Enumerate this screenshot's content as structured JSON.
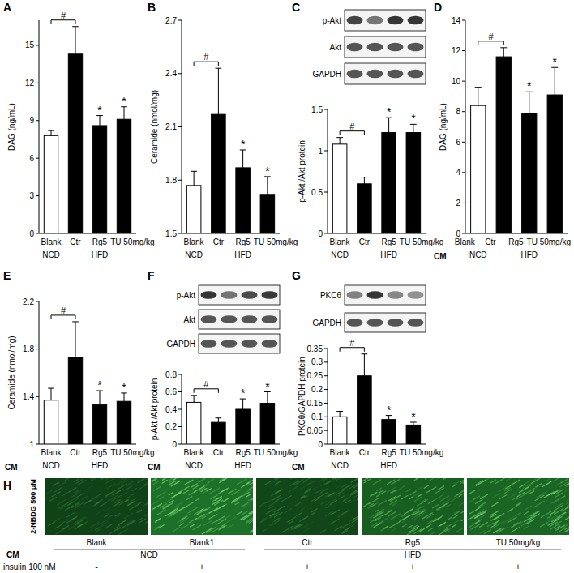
{
  "chart_data": [
    {
      "type": "bar",
      "title": "A",
      "y_label": "DAG (ng/mL)",
      "categories": [
        "Blank",
        "Ctr",
        "Rg5",
        "TU 50mg/kg"
      ],
      "values": [
        7.8,
        14.3,
        8.6,
        9.1
      ],
      "errors": [
        0.4,
        2.2,
        0.8,
        1.0
      ],
      "colors": [
        "#ffffff",
        "#000000",
        "#000000",
        "#000000"
      ],
      "groups": [
        "NCD",
        "HFD",
        "HFD",
        "HFD"
      ],
      "comparison": {
        "label": "#",
        "between": [
          "Blank",
          "Ctr"
        ]
      },
      "significance": [
        null,
        null,
        "*",
        "*"
      ],
      "ylim": [
        0,
        17
      ],
      "yticks": [
        0,
        3,
        6,
        9,
        12,
        15
      ],
      "grid": false
    },
    {
      "type": "bar",
      "title": "B",
      "y_label": "Ceramide (nmol/mg)",
      "categories": [
        "Blank",
        "Ctr",
        "Rg5",
        "TU 50mg/kg"
      ],
      "values": [
        1.77,
        2.17,
        1.87,
        1.72
      ],
      "errors": [
        0.08,
        0.26,
        0.1,
        0.1
      ],
      "colors": [
        "#ffffff",
        "#000000",
        "#000000",
        "#000000"
      ],
      "groups": [
        "NCD",
        "HFD",
        "HFD",
        "HFD"
      ],
      "comparison": {
        "label": "#",
        "between": [
          "Blank",
          "Ctr"
        ]
      },
      "significance": [
        null,
        null,
        "*",
        "*"
      ],
      "ylim": [
        1.5,
        2.7
      ],
      "yticks": [
        1.5,
        1.8,
        2.1,
        2.4,
        2.7
      ],
      "grid": false
    },
    {
      "type": "bar",
      "title": "C",
      "y_label": "p-Akt /Akt protein",
      "blot": [
        "p-Akt",
        "Akt",
        "GAPDH"
      ],
      "categories": [
        "Blank",
        "Ctr",
        "Rg5",
        "TU 50mg/kg"
      ],
      "values": [
        1.08,
        0.6,
        1.22,
        1.22
      ],
      "errors": [
        0.08,
        0.08,
        0.18,
        0.1
      ],
      "colors": [
        "#ffffff",
        "#000000",
        "#000000",
        "#000000"
      ],
      "groups": [
        "NCD",
        "HFD",
        "HFD",
        "HFD"
      ],
      "comparison": {
        "label": "#",
        "between": [
          "Blank",
          "Ctr"
        ]
      },
      "significance": [
        null,
        null,
        "*",
        "*"
      ],
      "ylim": [
        0,
        1.5
      ],
      "yticks": [
        0,
        0.5,
        1,
        1.5
      ],
      "grid": false
    },
    {
      "type": "bar",
      "title": "D",
      "y_label": "DAG (ng/mL)",
      "condition_label": "CM",
      "categories": [
        "Blank",
        "Ctr",
        "Rg5",
        "TU 50mg/kg"
      ],
      "values": [
        8.4,
        11.6,
        7.9,
        9.1
      ],
      "errors": [
        1.2,
        0.6,
        1.4,
        1.8
      ],
      "colors": [
        "#ffffff",
        "#000000",
        "#000000",
        "#000000"
      ],
      "groups": [
        "NCD",
        "HFD",
        "HFD",
        "HFD"
      ],
      "comparison": {
        "label": "#",
        "between": [
          "Blank",
          "Ctr"
        ]
      },
      "significance": [
        null,
        null,
        "*",
        "*"
      ],
      "ylim": [
        0,
        14
      ],
      "yticks": [
        0,
        2,
        4,
        6,
        8,
        10,
        12,
        14
      ],
      "grid": false
    },
    {
      "type": "bar",
      "title": "E",
      "y_label": "Ceramide (nmol/mg)",
      "condition_label": "CM",
      "categories": [
        "Blank",
        "Ctr",
        "Rg5",
        "TU 50mg/kg"
      ],
      "values": [
        1.37,
        1.73,
        1.33,
        1.36
      ],
      "errors": [
        0.1,
        0.3,
        0.12,
        0.07
      ],
      "colors": [
        "#ffffff",
        "#000000",
        "#000000",
        "#000000"
      ],
      "groups": [
        "NCD",
        "HFD",
        "HFD",
        "HFD"
      ],
      "comparison": {
        "label": "#",
        "between": [
          "Blank",
          "Ctr"
        ]
      },
      "significance": [
        null,
        null,
        "*",
        "*"
      ],
      "ylim": [
        1,
        2.2
      ],
      "yticks": [
        1,
        1.4,
        1.8,
        2.2
      ],
      "grid": false
    },
    {
      "type": "bar",
      "title": "F",
      "y_label": "p-Akt /Akt protein",
      "condition_label": "CM",
      "blot": [
        "p-Akt",
        "Akt",
        "GAPDH"
      ],
      "categories": [
        "Blank",
        "Ctr",
        "Rg5",
        "TU 50mg/kg"
      ],
      "values": [
        0.48,
        0.25,
        0.4,
        0.47
      ],
      "errors": [
        0.08,
        0.05,
        0.12,
        0.13
      ],
      "colors": [
        "#ffffff",
        "#000000",
        "#000000",
        "#000000"
      ],
      "groups": [
        "NCD",
        "HFD",
        "HFD",
        "HFD"
      ],
      "comparison": {
        "label": "#",
        "between": [
          "Blank",
          "Ctr"
        ]
      },
      "significance": [
        null,
        null,
        "*",
        "*"
      ],
      "ylim": [
        0,
        0.8
      ],
      "yticks": [
        0,
        0.2,
        0.4,
        0.6,
        0.8
      ],
      "grid": false
    },
    {
      "type": "bar",
      "title": "G",
      "y_label": "PKCθ/GAPDH protein",
      "condition_label": "CM",
      "blot": [
        "PKCθ",
        "GAPDH"
      ],
      "categories": [
        "Blank",
        "Ctr",
        "Rg5",
        "TU 50mg/kg"
      ],
      "values": [
        0.1,
        0.25,
        0.09,
        0.07
      ],
      "errors": [
        0.02,
        0.08,
        0.015,
        0.01
      ],
      "colors": [
        "#ffffff",
        "#000000",
        "#000000",
        "#000000"
      ],
      "groups": [
        "NCD",
        "HFD",
        "HFD",
        "HFD"
      ],
      "comparison": {
        "label": "#",
        "between": [
          "Blank",
          "Ctr"
        ]
      },
      "significance": [
        null,
        null,
        "*",
        "*"
      ],
      "ylim": [
        0,
        0.35
      ],
      "yticks": [
        0,
        0.05,
        0.1,
        0.15,
        0.2,
        0.25,
        0.3,
        0.35
      ],
      "grid": false
    }
  ],
  "image_panel": {
    "title": "H",
    "stain_label": "2-NBDG 500 μM",
    "columns": [
      "Blank",
      "Blank1",
      "Ctr",
      "Rg5",
      "TU 50mg/kg"
    ],
    "groups": [
      "NCD",
      "NCD",
      "HFD",
      "HFD",
      "HFD"
    ],
    "condition_label": "CM",
    "treatment_label": "insulin 100 nM",
    "treatment": [
      "-",
      "+",
      "+",
      "+",
      "+"
    ]
  }
}
